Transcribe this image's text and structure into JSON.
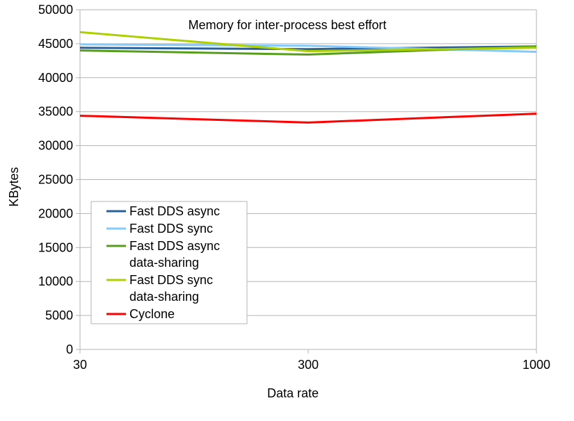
{
  "chart_data": {
    "type": "line",
    "title": "Memory for inter-process best effort",
    "xlabel": "Data rate",
    "ylabel": "KBytes",
    "categories": [
      "30",
      "300",
      "1000"
    ],
    "ylim": [
      0,
      50000
    ],
    "yticks": [
      "0",
      "5000",
      "10000",
      "15000",
      "20000",
      "25000",
      "30000",
      "35000",
      "40000",
      "45000",
      "50000"
    ],
    "grid": true,
    "legend_position": "left",
    "series": [
      {
        "name": "Fast DDS async",
        "color": "#2a6099",
        "values": [
          44400,
          44200,
          44600
        ]
      },
      {
        "name": "Fast DDS sync",
        "color": "#83caff",
        "values": [
          44900,
          44700,
          43800
        ]
      },
      {
        "name": "Fast DDS async data-sharing",
        "legend_lines": [
          "Fast DDS async",
          "data-sharing"
        ],
        "color": "#579d1c",
        "values": [
          44000,
          43400,
          44600
        ]
      },
      {
        "name": "Fast DDS sync data-sharing",
        "legend_lines": [
          "Fast DDS sync",
          "data-sharing"
        ],
        "color": "#aecf00",
        "values": [
          46700,
          43900,
          44400
        ]
      },
      {
        "name": "Cyclone",
        "color": "#ff0000",
        "values": [
          34400,
          33400,
          34700
        ]
      }
    ]
  }
}
